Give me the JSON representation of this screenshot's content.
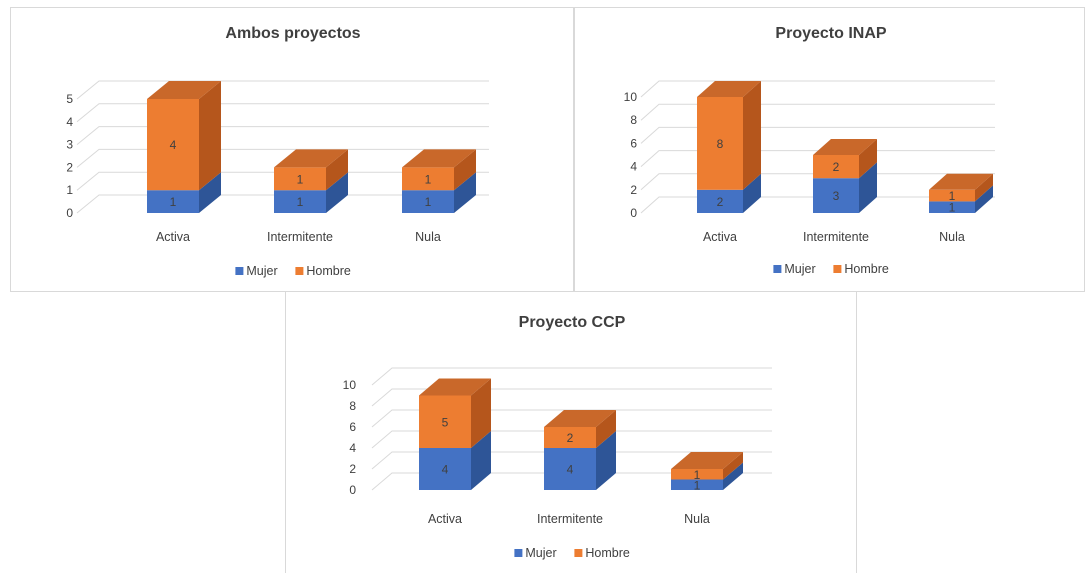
{
  "colors": {
    "mujer_front": "#4472c4",
    "mujer_side": "#2e5597",
    "mujer_top": "#5b86d4",
    "hombre_front": "#ed7d31",
    "hombre_side": "#b5561c",
    "hombre_top": "#c9682a",
    "grid": "#d9d9d9",
    "text": "#404040",
    "title": "#3f3f3f"
  },
  "chart_data": [
    {
      "type": "bar",
      "stacked": true,
      "three_d": true,
      "title": "Ambos proyectos",
      "categories": [
        "Activa",
        "Intermitente",
        "Nula"
      ],
      "series": [
        {
          "name": "Mujer",
          "values": [
            1,
            1,
            1
          ]
        },
        {
          "name": "Hombre",
          "values": [
            4,
            1,
            1
          ]
        }
      ],
      "yticks": [
        0,
        1,
        2,
        3,
        4,
        5
      ],
      "ylim": [
        0,
        5
      ],
      "grid": true,
      "legend": "bottom"
    },
    {
      "type": "bar",
      "stacked": true,
      "three_d": true,
      "title": "Proyecto INAP",
      "categories": [
        "Activa",
        "Intermitente",
        "Nula"
      ],
      "series": [
        {
          "name": "Mujer",
          "values": [
            2,
            3,
            1
          ]
        },
        {
          "name": "Hombre",
          "values": [
            8,
            2,
            1
          ]
        }
      ],
      "yticks": [
        0,
        2,
        4,
        6,
        8,
        10
      ],
      "ylim": [
        0,
        10
      ],
      "grid": true,
      "legend": "bottom"
    },
    {
      "type": "bar",
      "stacked": true,
      "three_d": true,
      "title": "Proyecto CCP",
      "categories": [
        "Activa",
        "Intermitente",
        "Nula"
      ],
      "series": [
        {
          "name": "Mujer",
          "values": [
            4,
            4,
            1
          ]
        },
        {
          "name": "Hombre",
          "values": [
            5,
            2,
            1
          ]
        }
      ],
      "yticks": [
        0,
        2,
        4,
        6,
        8,
        10
      ],
      "ylim": [
        0,
        10
      ],
      "grid": true,
      "legend": "bottom"
    }
  ]
}
